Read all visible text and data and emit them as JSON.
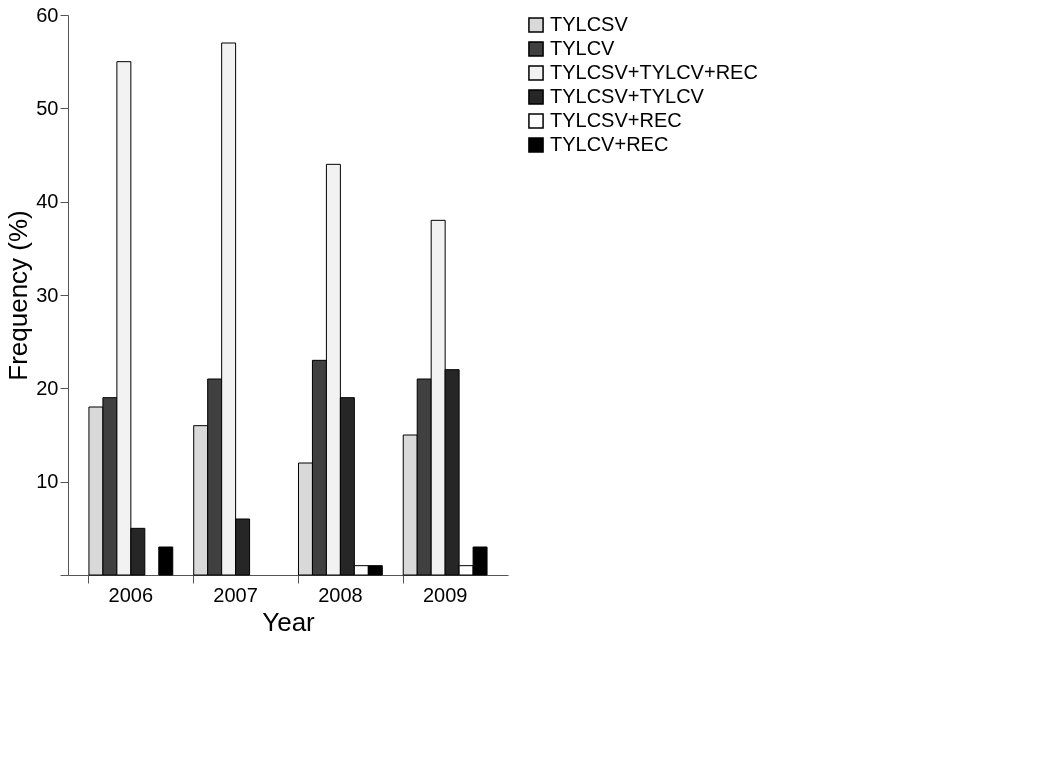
{
  "chart_data": {
    "type": "bar",
    "xlabel": "Year",
    "ylabel": "Frequency (%)",
    "categories": [
      "2006",
      "2007",
      "2008",
      "2009"
    ],
    "series": [
      {
        "name": "TYLCSV",
        "color": "#d9d9d9",
        "values": [
          18,
          16,
          12,
          15
        ]
      },
      {
        "name": "TYLCV",
        "color": "#404040",
        "values": [
          19,
          21,
          23,
          21
        ]
      },
      {
        "name": "TYLCSV+TYLCV+REC",
        "color": "#f2f2f2",
        "values": [
          55,
          57,
          44,
          38
        ]
      },
      {
        "name": "TYLCSV+TYLCV",
        "color": "#262626",
        "values": [
          5,
          6,
          19,
          22
        ]
      },
      {
        "name": "TYLCSV+REC",
        "color": "#ffffff",
        "values": [
          null,
          null,
          1,
          1
        ]
      },
      {
        "name": "TYLCV+REC",
        "color": "#000000",
        "values": [
          3,
          null,
          1,
          3
        ]
      }
    ],
    "ylim": [
      0,
      60
    ],
    "yticks": [
      {
        "value": 0,
        "label": null
      },
      10,
      20,
      30,
      40,
      50,
      60
    ],
    "grid": false,
    "legend": "right"
  }
}
